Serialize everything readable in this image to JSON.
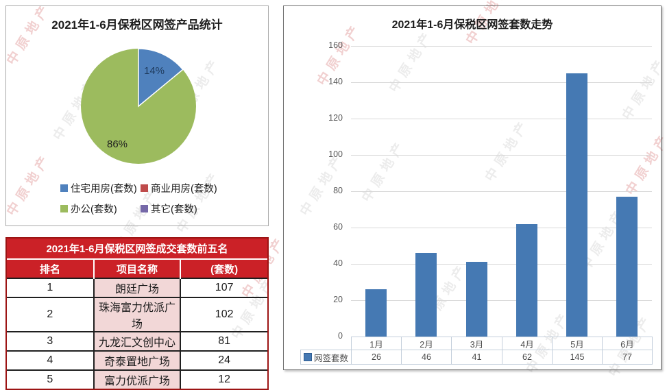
{
  "watermark": {
    "text": "中原地产"
  },
  "pie_panel": {
    "title": "2021年1-6月保税区网签产品统计",
    "labels": {
      "blue": "14%",
      "green": "86%"
    },
    "legend": [
      {
        "label": "住宅用房(套数)",
        "color": "#4f81bd"
      },
      {
        "label": "商业用房(套数)",
        "color": "#bf4b4b"
      },
      {
        "label": "办公(套数)",
        "color": "#9cbb5e"
      },
      {
        "label": "其它(套数)",
        "color": "#7568a8"
      }
    ]
  },
  "ranking_table": {
    "title": "2021年1-6月保税区网签成交套数前五名",
    "columns": [
      "排名",
      "项目名称",
      "(套数)"
    ],
    "rows": [
      [
        "1",
        "朗廷广场",
        "107"
      ],
      [
        "2",
        "珠海富力优派广场",
        "102"
      ],
      [
        "3",
        "九龙汇文创中心",
        "81"
      ],
      [
        "4",
        "奇泰置地广场",
        "24"
      ],
      [
        "5",
        "富力优派广场",
        "12"
      ]
    ]
  },
  "bar_panel": {
    "title": "2021年1-6月保税区网签套数走势",
    "legend_label": "网签套数",
    "y_ticks": [
      0,
      20,
      40,
      60,
      80,
      100,
      120,
      140,
      160
    ]
  },
  "chart_data": [
    {
      "type": "pie",
      "title": "2021年1-6月保税区网签产品统计",
      "labels": [
        "住宅用房(套数)",
        "商业用房(套数)",
        "办公(套数)",
        "其它(套数)"
      ],
      "values_percent": [
        14,
        0,
        86,
        0
      ],
      "colors": [
        "#4f81bd",
        "#bf4b4b",
        "#9cbb5e",
        "#7568a8"
      ],
      "annotations": [
        "14%",
        "86%"
      ],
      "legend_position": "bottom"
    },
    {
      "type": "bar",
      "title": "2021年1-6月保税区网签套数走势",
      "categories": [
        "1月",
        "2月",
        "3月",
        "4月",
        "5月",
        "6月"
      ],
      "series": [
        {
          "name": "网签套数",
          "values": [
            26,
            46,
            41,
            62,
            145,
            77
          ]
        }
      ],
      "xlabel": "",
      "ylabel": "",
      "ylim": [
        0,
        160
      ],
      "ytick_step": 20,
      "bar_color": "#4579b3",
      "grid": true,
      "legend_position": "bottom-left-table"
    },
    {
      "type": "table",
      "title": "2021年1-6月保税区网签成交套数前五名",
      "columns": [
        "排名",
        "项目名称",
        "(套数)"
      ],
      "rows": [
        [
          "1",
          "朗廷广场",
          107
        ],
        [
          "2",
          "珠海富力优派广场",
          102
        ],
        [
          "3",
          "九龙汇文创中心",
          81
        ],
        [
          "4",
          "奇泰置地广场",
          24
        ],
        [
          "5",
          "富力优派广场",
          12
        ]
      ]
    }
  ]
}
